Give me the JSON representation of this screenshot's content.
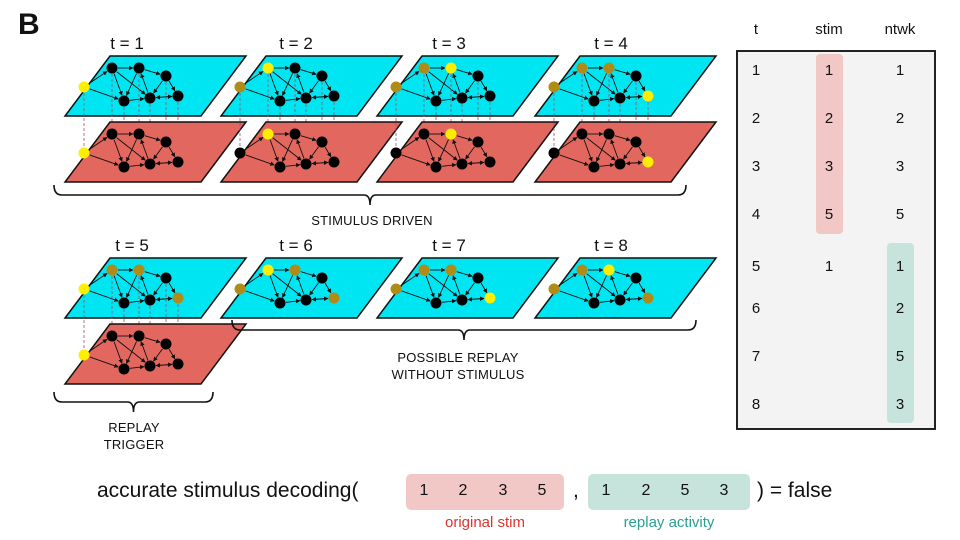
{
  "panel_label": "B",
  "colors": {
    "network_plane": "#00e5f2",
    "stimulus_plane": "#e2675f",
    "active_node": "#ffee00",
    "previous_node": "#b08b18",
    "idle_node": "#000000",
    "dashed_link": "#a0506a",
    "highlight_stim": "#f2c8c6",
    "highlight_ntwk": "#c6e3dc",
    "caption_red": "#e0332c",
    "caption_teal": "#2aa096"
  },
  "timesteps": [
    {
      "label": "t = 1",
      "has_stimulus": true,
      "active": "A",
      "previous": []
    },
    {
      "label": "t = 2",
      "has_stimulus": true,
      "active": "B",
      "previous": [
        "A"
      ]
    },
    {
      "label": "t = 3",
      "has_stimulus": true,
      "active": "C",
      "previous": [
        "A",
        "B"
      ]
    },
    {
      "label": "t = 4",
      "has_stimulus": true,
      "active": "G",
      "previous": [
        "A",
        "B",
        "C"
      ]
    },
    {
      "label": "t = 5",
      "has_stimulus": true,
      "active": "A",
      "previous": [
        "B",
        "C",
        "G"
      ]
    },
    {
      "label": "t = 6",
      "has_stimulus": false,
      "active": "B",
      "previous": [
        "A",
        "C",
        "G"
      ]
    },
    {
      "label": "t = 7",
      "has_stimulus": false,
      "active": "G",
      "previous": [
        "A",
        "B",
        "C"
      ]
    },
    {
      "label": "t = 8",
      "has_stimulus": false,
      "active": "C",
      "previous": [
        "A",
        "B",
        "G"
      ]
    }
  ],
  "groups": {
    "stimulus_driven": "STIMULUS DRIVEN",
    "replay_line1": "POSSIBLE REPLAY",
    "replay_line2": "WITHOUT STIMULUS",
    "trigger_line1": "REPLAY",
    "trigger_line2": "TRIGGER"
  },
  "table": {
    "headers": {
      "t": "t",
      "stim": "stim",
      "ntwk": "ntwk"
    },
    "rows": [
      {
        "t": "1",
        "stim": "1",
        "ntwk": "1"
      },
      {
        "t": "2",
        "stim": "2",
        "ntwk": "2"
      },
      {
        "t": "3",
        "stim": "3",
        "ntwk": "3"
      },
      {
        "t": "4",
        "stim": "5",
        "ntwk": "5"
      },
      {
        "t": "5",
        "stim": "1",
        "ntwk": "1"
      },
      {
        "t": "6",
        "stim": "",
        "ntwk": "2"
      },
      {
        "t": "7",
        "stim": "",
        "ntwk": "5"
      },
      {
        "t": "8",
        "stim": "",
        "ntwk": "3"
      }
    ]
  },
  "equation": {
    "prefix": "accurate stimulus decoding(",
    "original_seq": [
      "1",
      "2",
      "3",
      "5"
    ],
    "comma": ",",
    "replay_seq": [
      "1",
      "2",
      "5",
      "3"
    ],
    "suffix": ") = false",
    "original_caption": "original stim",
    "replay_caption": "replay activity"
  }
}
